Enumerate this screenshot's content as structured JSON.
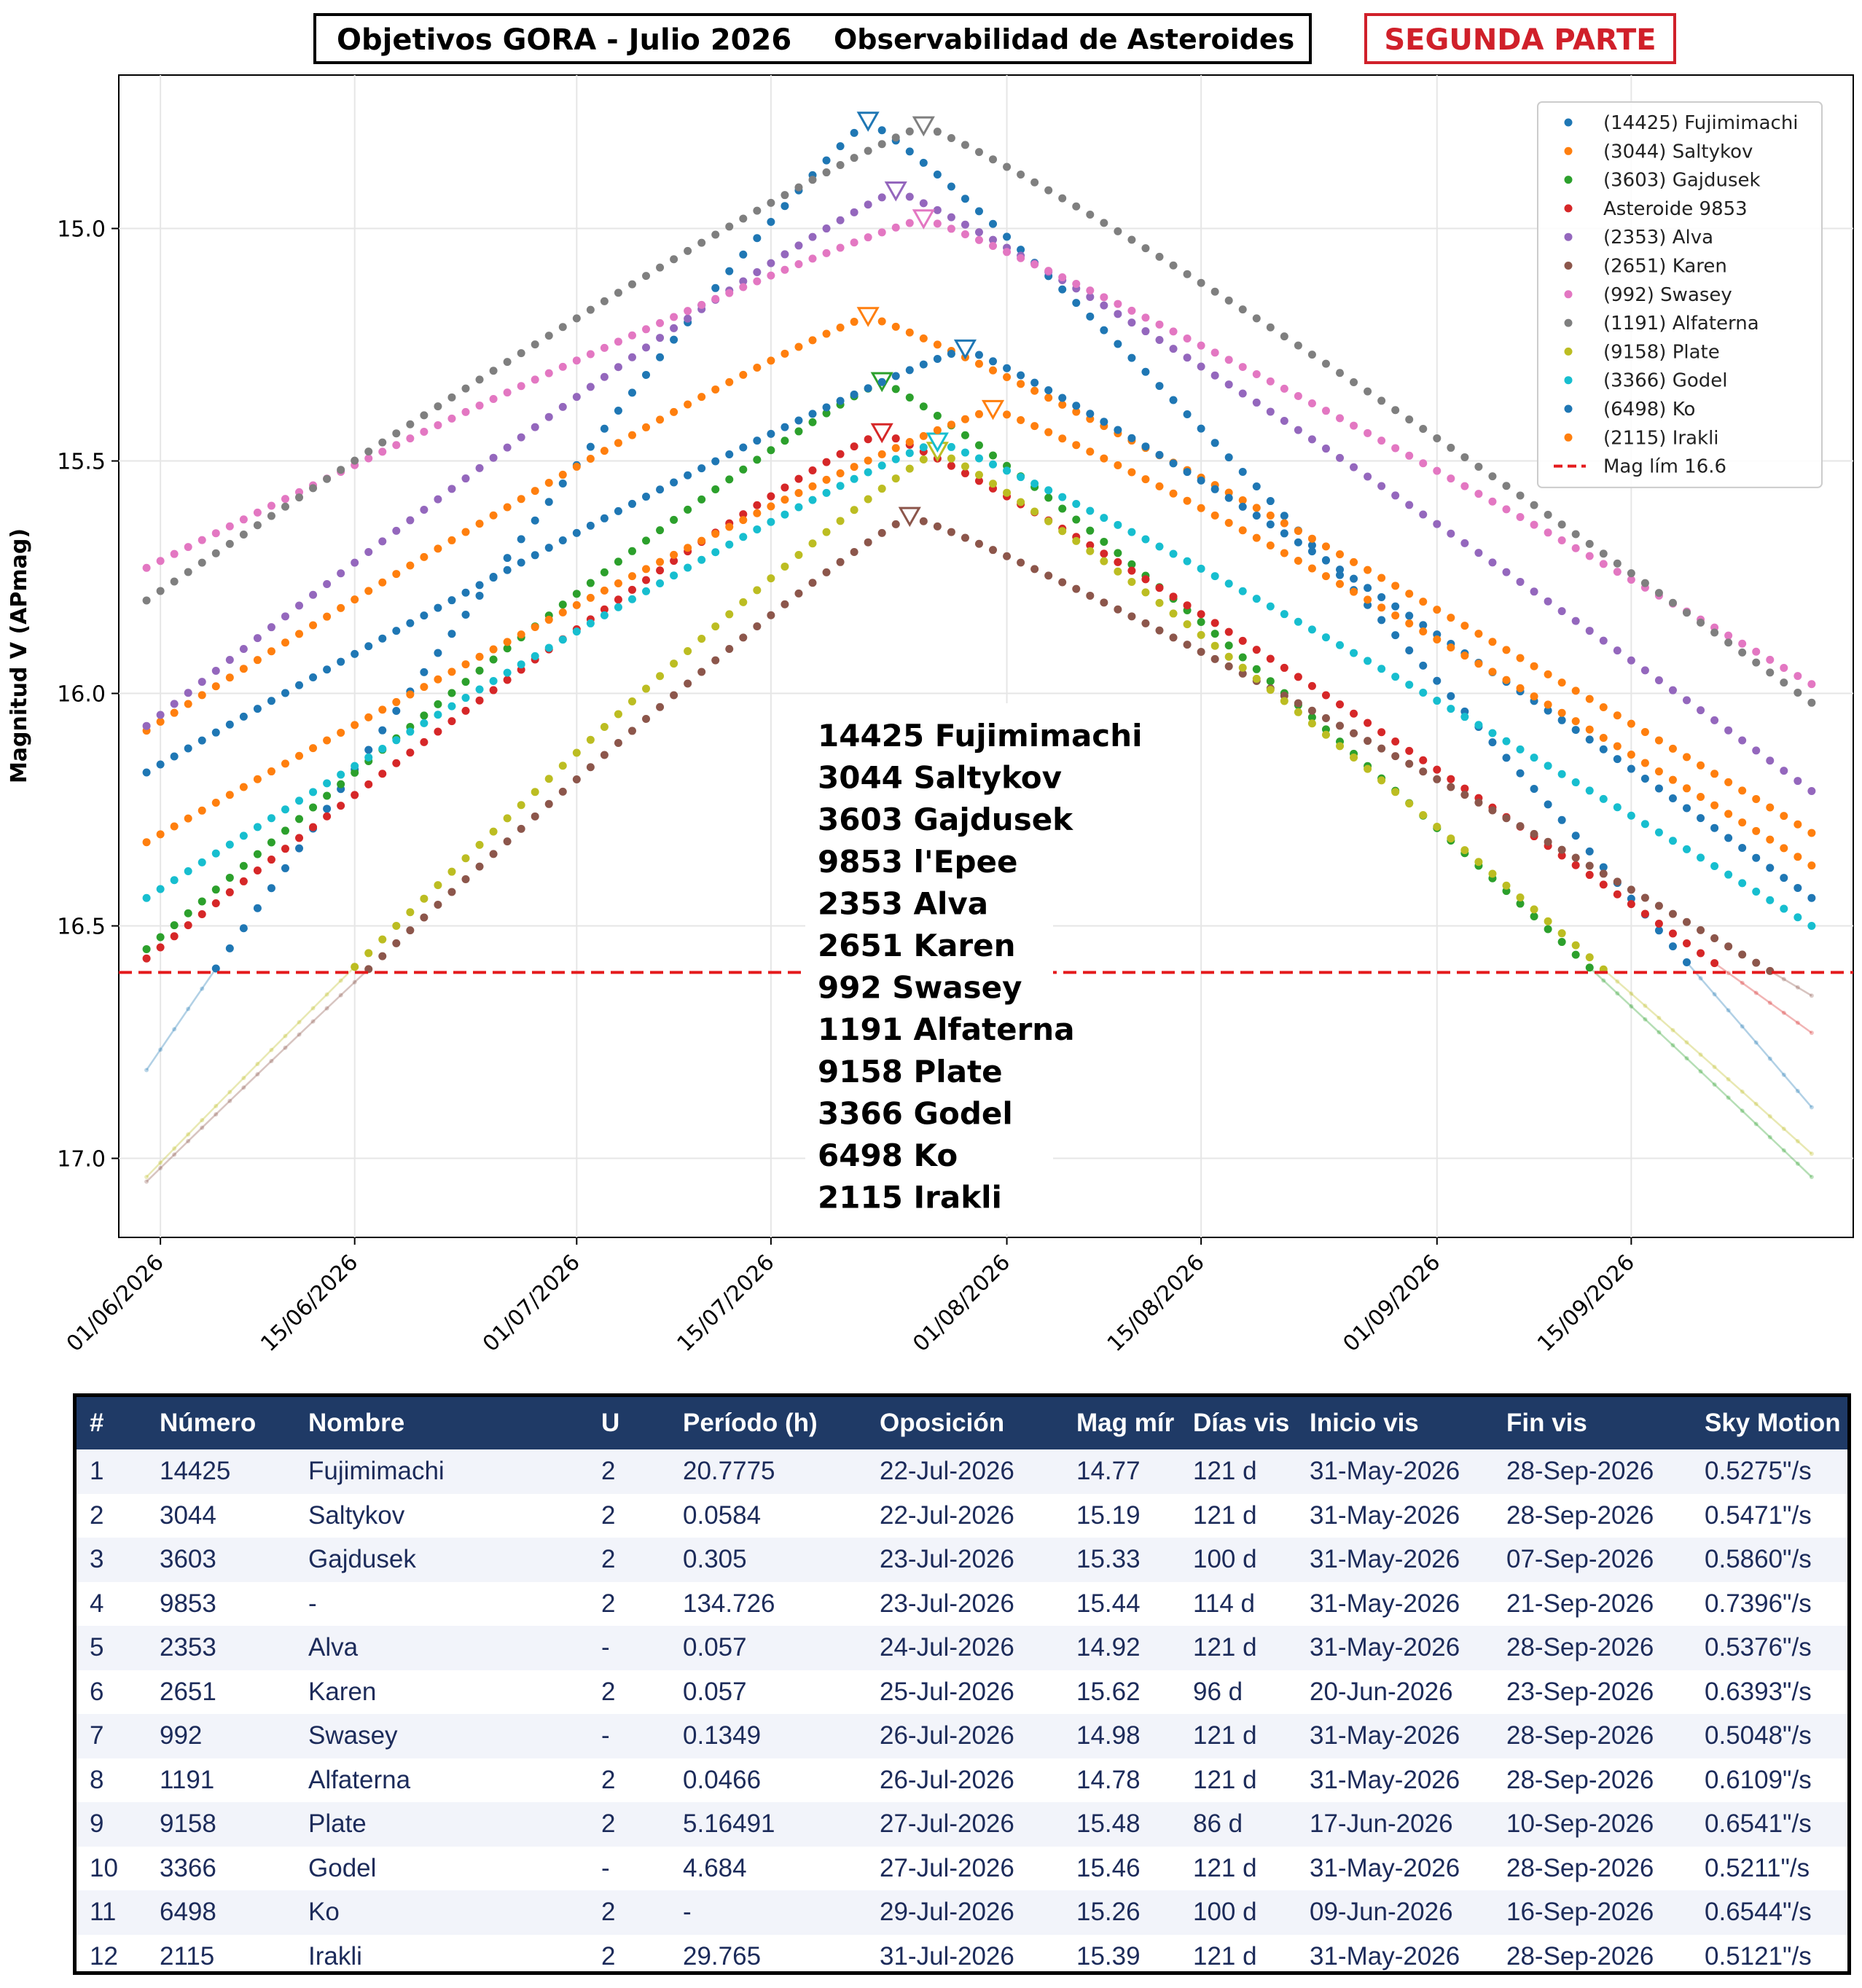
{
  "header": {
    "title": "Objetivos GORA - Julio 2026",
    "subtitle": "Observabilidad de Asteroides",
    "part": "SEGUNDA PARTE"
  },
  "chart_data": {
    "type": "scatter",
    "ylabel": "Magnitud V (APmag)",
    "xlabel": "",
    "y_inverted": true,
    "ylim": [
      17.17,
      14.67
    ],
    "xlim": [
      "2026-05-29",
      "2026-10-01"
    ],
    "yticks": [
      "15.0",
      "15.5",
      "16.0",
      "16.5",
      "17.0"
    ],
    "xticks": [
      "01/06/2026",
      "15/06/2026",
      "01/07/2026",
      "15/07/2026",
      "01/08/2026",
      "15/08/2026",
      "01/09/2026",
      "15/09/2026"
    ],
    "grid": true,
    "legend_position": "top-right",
    "limit": {
      "name": "Mag lím 16.6",
      "value": 16.6,
      "color": "#e41a1c"
    },
    "overlay_list": [
      "14425 Fujimimachi",
      "3044 Saltykov",
      "3603 Gajdusek",
      "9853 l'Epee",
      "2353 Alva",
      "2651 Karen",
      "992 Swasey",
      "1191 Alfaterna",
      "9158 Plate",
      "3366 Godel",
      "6498 Ko",
      "2115 Irakli"
    ],
    "series": [
      {
        "name": "(14425) Fujimimachi",
        "color": "#1f77b4",
        "x": [
          "2026-05-31",
          "2026-07-22",
          "2026-09-28"
        ],
        "y": [
          16.81,
          14.77,
          16.89
        ]
      },
      {
        "name": "(3044) Saltykov",
        "color": "#ff7f0e",
        "x": [
          "2026-05-31",
          "2026-07-22",
          "2026-09-28"
        ],
        "y": [
          16.08,
          15.19,
          16.3
        ]
      },
      {
        "name": "(3603) Gajdusek",
        "color": "#2ca02c",
        "x": [
          "2026-05-31",
          "2026-07-23",
          "2026-09-28"
        ],
        "y": [
          16.55,
          15.33,
          17.04
        ]
      },
      {
        "name": "Asteroide 9853",
        "color": "#d62728",
        "x": [
          "2026-05-31",
          "2026-07-23",
          "2026-09-28"
        ],
        "y": [
          16.57,
          15.44,
          16.73
        ]
      },
      {
        "name": "(2353) Alva",
        "color": "#9467bd",
        "x": [
          "2026-05-31",
          "2026-07-24",
          "2026-09-28"
        ],
        "y": [
          16.07,
          14.92,
          16.21
        ]
      },
      {
        "name": "(2651) Karen",
        "color": "#8c564b",
        "x": [
          "2026-05-31",
          "2026-07-25",
          "2026-09-28"
        ],
        "y": [
          17.05,
          15.62,
          16.65
        ]
      },
      {
        "name": "(992) Swasey",
        "color": "#e377c2",
        "x": [
          "2026-05-31",
          "2026-07-26",
          "2026-09-28"
        ],
        "y": [
          15.73,
          14.98,
          15.98
        ]
      },
      {
        "name": "(1191) Alfaterna",
        "color": "#7f7f7f",
        "x": [
          "2026-05-31",
          "2026-07-26",
          "2026-09-28"
        ],
        "y": [
          15.8,
          14.78,
          16.02
        ]
      },
      {
        "name": "(9158) Plate",
        "color": "#bcbd22",
        "x": [
          "2026-05-31",
          "2026-07-27",
          "2026-09-28"
        ],
        "y": [
          17.04,
          15.48,
          16.99
        ]
      },
      {
        "name": "(3366) Godel",
        "color": "#17becf",
        "x": [
          "2026-05-31",
          "2026-07-27",
          "2026-09-28"
        ],
        "y": [
          16.44,
          15.46,
          16.5
        ]
      },
      {
        "name": "(6498) Ko",
        "color": "#1f77b4",
        "x": [
          "2026-05-31",
          "2026-07-29",
          "2026-09-28"
        ],
        "y": [
          16.17,
          15.26,
          16.44
        ]
      },
      {
        "name": "(2115) Irakli",
        "color": "#ff7f0e",
        "x": [
          "2026-05-31",
          "2026-07-31",
          "2026-09-28"
        ],
        "y": [
          16.32,
          15.39,
          16.37
        ]
      }
    ]
  },
  "table": {
    "headers": [
      "#",
      "Número",
      "Nombre",
      "U",
      "Período (h)",
      "Oposición",
      "Mag mír",
      "Días vis",
      "Inicio vis",
      "Fin vis",
      "Sky Motion"
    ],
    "rows": [
      [
        "1",
        "14425",
        "Fujimimachi",
        "2",
        "20.7775",
        "22-Jul-2026",
        "14.77",
        "121 d",
        "31-May-2026",
        "28-Sep-2026",
        "0.5275\"/s"
      ],
      [
        "2",
        "3044",
        "Saltykov",
        "2",
        "0.0584",
        "22-Jul-2026",
        "15.19",
        "121 d",
        "31-May-2026",
        "28-Sep-2026",
        "0.5471\"/s"
      ],
      [
        "3",
        "3603",
        "Gajdusek",
        "2",
        "0.305",
        "23-Jul-2026",
        "15.33",
        "100 d",
        "31-May-2026",
        "07-Sep-2026",
        "0.5860\"/s"
      ],
      [
        "4",
        "9853",
        "-",
        "2",
        "134.726",
        "23-Jul-2026",
        "15.44",
        "114 d",
        "31-May-2026",
        "21-Sep-2026",
        "0.7396\"/s"
      ],
      [
        "5",
        "2353",
        "Alva",
        "-",
        "0.057",
        "24-Jul-2026",
        "14.92",
        "121 d",
        "31-May-2026",
        "28-Sep-2026",
        "0.5376\"/s"
      ],
      [
        "6",
        "2651",
        "Karen",
        "2",
        "0.057",
        "25-Jul-2026",
        "15.62",
        "96 d",
        "20-Jun-2026",
        "23-Sep-2026",
        "0.6393\"/s"
      ],
      [
        "7",
        "992",
        "Swasey",
        "-",
        "0.1349",
        "26-Jul-2026",
        "14.98",
        "121 d",
        "31-May-2026",
        "28-Sep-2026",
        "0.5048\"/s"
      ],
      [
        "8",
        "1191",
        "Alfaterna",
        "2",
        "0.0466",
        "26-Jul-2026",
        "14.78",
        "121 d",
        "31-May-2026",
        "28-Sep-2026",
        "0.6109\"/s"
      ],
      [
        "9",
        "9158",
        "Plate",
        "2",
        "5.16491",
        "27-Jul-2026",
        "15.48",
        "86 d",
        "17-Jun-2026",
        "10-Sep-2026",
        "0.6541\"/s"
      ],
      [
        "10",
        "3366",
        "Godel",
        "-",
        "4.684",
        "27-Jul-2026",
        "15.46",
        "121 d",
        "31-May-2026",
        "28-Sep-2026",
        "0.5211\"/s"
      ],
      [
        "11",
        "6498",
        "Ko",
        "2",
        "-",
        "29-Jul-2026",
        "15.26",
        "100 d",
        "09-Jun-2026",
        "16-Sep-2026",
        "0.6544\"/s"
      ],
      [
        "12",
        "2115",
        "Irakli",
        "2",
        "29.765",
        "31-Jul-2026",
        "15.39",
        "121 d",
        "31-May-2026",
        "28-Sep-2026",
        "0.5121\"/s"
      ]
    ]
  }
}
